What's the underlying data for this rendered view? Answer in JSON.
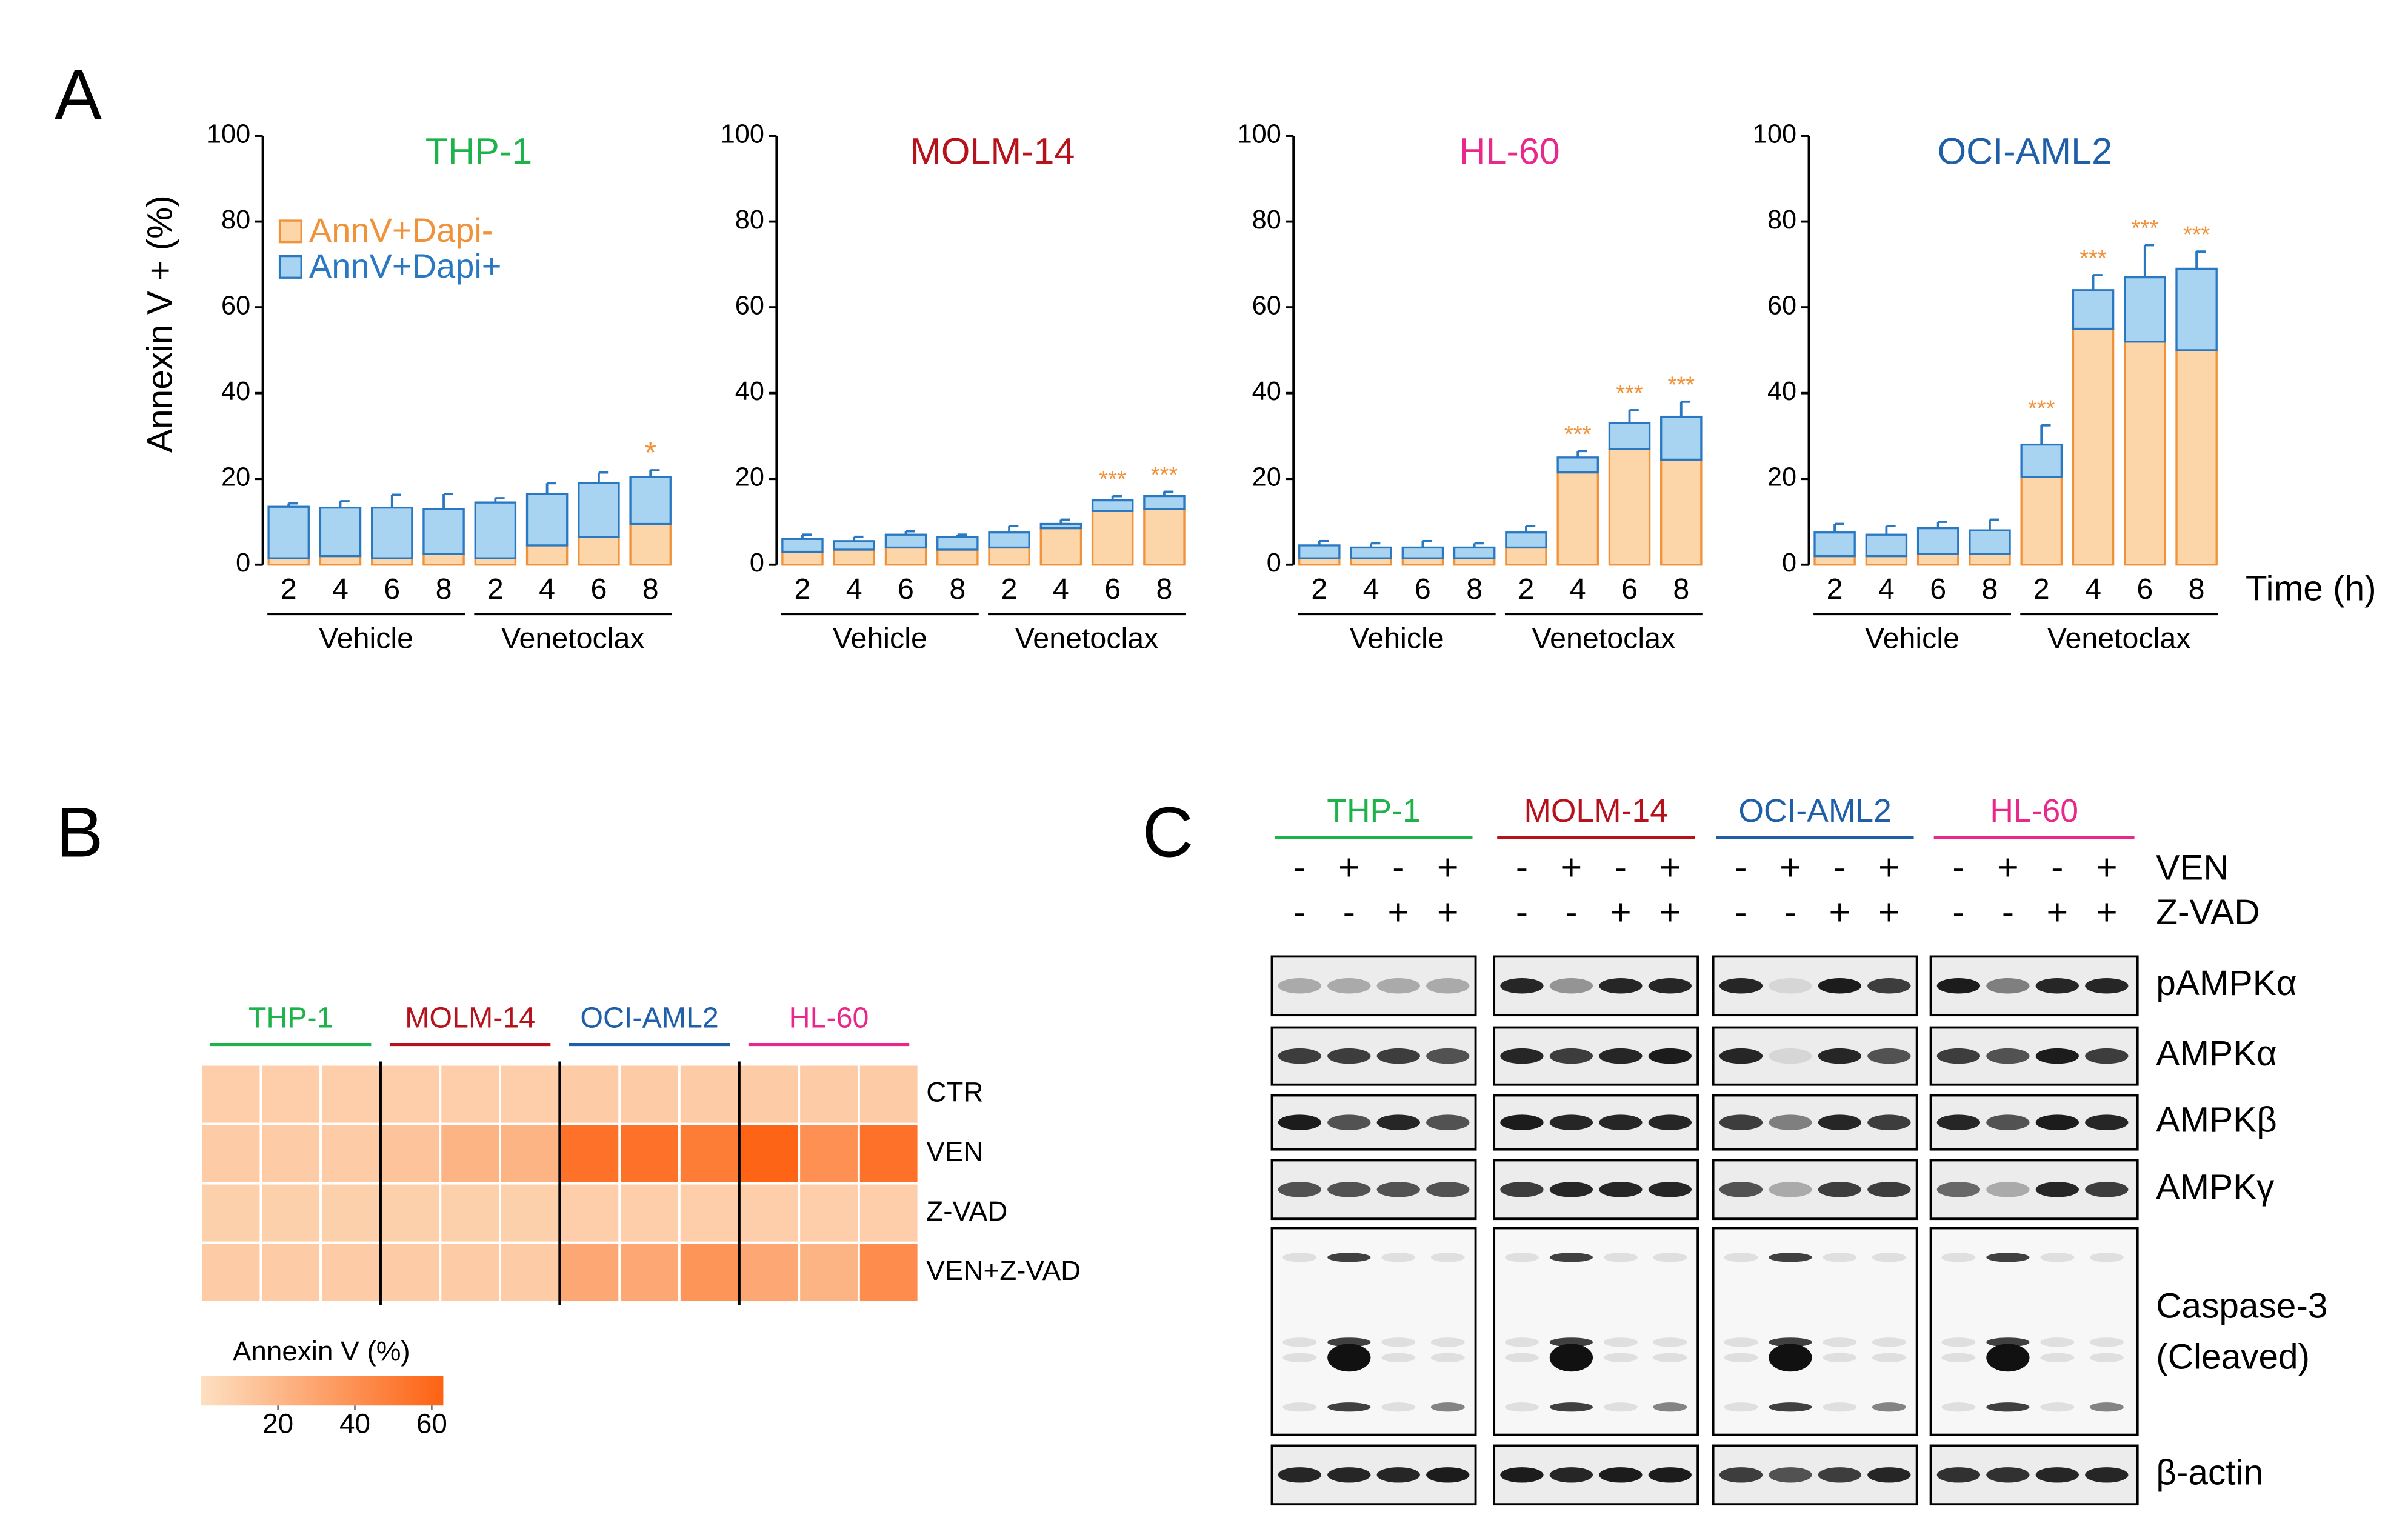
{
  "panels": {
    "A": "A",
    "B": "B",
    "C": "C"
  },
  "chart_data": [
    {
      "type": "bar",
      "stacked": true,
      "title": "THP-1",
      "title_color": "#1db34a",
      "ylabel": "Annexin V + (%)",
      "categories": [
        "2",
        "4",
        "6",
        "8",
        "2",
        "4",
        "6",
        "8"
      ],
      "groups": [
        "Vehicle",
        "Venetoclax"
      ],
      "ylim": [
        0,
        100
      ],
      "yticks": [
        0,
        20,
        40,
        60,
        80,
        100
      ],
      "series": [
        {
          "name": "AnnV+Dapi-",
          "color": "#fcd5a8",
          "edge": "#f0923a",
          "values": [
            1.5,
            2,
            1.5,
            2.5,
            1.5,
            4.5,
            6.5,
            9.5
          ],
          "errors": [
            0.5,
            0.5,
            0.5,
            1.5,
            0.5,
            1,
            2,
            3.5
          ]
        },
        {
          "name": "AnnV+Dapi+",
          "color": "#a8d4f2",
          "edge": "#2a78c2",
          "values": [
            12,
            11.3,
            11.8,
            10.5,
            13,
            12,
            12.5,
            11
          ],
          "errors": [
            0.8,
            1.5,
            3,
            3.5,
            1,
            2.5,
            2.5,
            1.5
          ]
        }
      ],
      "annotations": [
        {
          "index": 7,
          "text": "*"
        }
      ]
    },
    {
      "type": "bar",
      "stacked": true,
      "title": "MOLM-14",
      "title_color": "#b5121b",
      "categories": [
        "2",
        "4",
        "6",
        "8",
        "2",
        "4",
        "6",
        "8"
      ],
      "groups": [
        "Vehicle",
        "Venetoclax"
      ],
      "ylim": [
        0,
        100
      ],
      "yticks": [
        0,
        20,
        40,
        60,
        80,
        100
      ],
      "series": [
        {
          "color": "#fcd5a8",
          "edge": "#f0923a",
          "values": [
            3,
            3.5,
            4,
            3.5,
            4,
            8.5,
            12.5,
            13
          ],
          "errors": [
            0.5,
            1,
            1.5,
            1,
            1,
            1,
            1.5,
            2
          ]
        },
        {
          "color": "#a8d4f2",
          "edge": "#2a78c2",
          "values": [
            3,
            2,
            3,
            3,
            3.5,
            1,
            2.5,
            3
          ],
          "errors": [
            1,
            1,
            0.8,
            0.5,
            1.5,
            1,
            1,
            1
          ]
        }
      ],
      "annotations": [
        {
          "index": 6,
          "text": "***"
        },
        {
          "index": 7,
          "text": "***"
        }
      ]
    },
    {
      "type": "bar",
      "stacked": true,
      "title": "HL-60",
      "title_color": "#e8288a",
      "categories": [
        "2",
        "4",
        "6",
        "8",
        "2",
        "4",
        "6",
        "8"
      ],
      "groups": [
        "Vehicle",
        "Venetoclax"
      ],
      "ylim": [
        0,
        100
      ],
      "yticks": [
        0,
        20,
        40,
        60,
        80,
        100
      ],
      "series": [
        {
          "color": "#fcd5a8",
          "edge": "#f0923a",
          "values": [
            1.5,
            1.5,
            1.5,
            1.5,
            4,
            21.5,
            27,
            24.5
          ],
          "errors": [
            0.5,
            0.5,
            0.5,
            0.5,
            1,
            3,
            4,
            7
          ]
        },
        {
          "color": "#a8d4f2",
          "edge": "#2a78c2",
          "values": [
            3,
            2.5,
            2.5,
            2.5,
            3.5,
            3.5,
            6,
            10
          ],
          "errors": [
            1,
            1,
            1.5,
            1,
            1.5,
            1.5,
            3,
            3.5
          ]
        }
      ],
      "annotations": [
        {
          "index": 5,
          "text": "***"
        },
        {
          "index": 6,
          "text": "***"
        },
        {
          "index": 7,
          "text": "***"
        }
      ]
    },
    {
      "type": "bar",
      "stacked": true,
      "title": "OCI-AML2",
      "title_color": "#1f5fa8",
      "xlabel": "Time (h)",
      "categories": [
        "2",
        "4",
        "6",
        "8",
        "2",
        "4",
        "6",
        "8"
      ],
      "groups": [
        "Vehicle",
        "Venetoclax"
      ],
      "ylim": [
        0,
        100
      ],
      "yticks": [
        0,
        20,
        40,
        60,
        80,
        100
      ],
      "series": [
        {
          "color": "#fcd5a8",
          "edge": "#f0923a",
          "values": [
            2,
            2,
            2.5,
            2.5,
            20.5,
            55,
            52,
            50
          ],
          "errors": [
            0.5,
            1,
            0.5,
            0.5,
            5,
            6,
            4,
            5
          ]
        },
        {
          "color": "#a8d4f2",
          "edge": "#2a78c2",
          "values": [
            5.5,
            5,
            6,
            5.5,
            7.5,
            9,
            15,
            19
          ],
          "errors": [
            2,
            2,
            1.5,
            2.5,
            4.5,
            3.5,
            7.5,
            4
          ]
        }
      ],
      "annotations": [
        {
          "index": 4,
          "text": "***"
        },
        {
          "index": 5,
          "text": "***"
        },
        {
          "index": 6,
          "text": "***"
        },
        {
          "index": 7,
          "text": "***"
        }
      ]
    },
    {
      "type": "heatmap",
      "col_groups": [
        {
          "name": "THP-1",
          "color": "#1db34a"
        },
        {
          "name": "MOLM-14",
          "color": "#b5121b"
        },
        {
          "name": "OCI-AML2",
          "color": "#1f5fa8"
        },
        {
          "name": "HL-60",
          "color": "#e8288a"
        }
      ],
      "rows": [
        "CTR",
        "VEN",
        "Z-VAD",
        "VEN+Z-VAD"
      ],
      "values": [
        [
          9,
          9,
          9,
          9,
          9,
          9,
          10,
          10,
          10,
          10,
          10,
          10
        ],
        [
          10,
          10,
          10,
          14,
          22,
          22,
          55,
          55,
          50,
          62,
          40,
          55
        ],
        [
          8,
          8,
          8,
          8,
          8,
          8,
          9,
          9,
          9,
          9,
          9,
          9
        ],
        [
          10,
          10,
          10,
          10,
          10,
          10,
          28,
          28,
          38,
          28,
          22,
          42
        ]
      ],
      "clim": [
        0,
        63
      ],
      "colors": [
        "#fde0c2",
        "#fd6212"
      ],
      "colorbar_label": "Annexin V (%)",
      "colorbar_ticks": [
        20,
        40,
        60
      ]
    }
  ],
  "blot": {
    "groups": [
      {
        "name": "THP-1",
        "color": "#1db34a"
      },
      {
        "name": "MOLM-14",
        "color": "#b5121b"
      },
      {
        "name": "OCI-AML2",
        "color": "#1f5fa8"
      },
      {
        "name": "HL-60",
        "color": "#e8288a"
      }
    ],
    "conditions": [
      {
        "name": "VEN",
        "values": [
          "-",
          "+",
          "-",
          "+"
        ]
      },
      {
        "name": "Z-VAD",
        "values": [
          "-",
          "-",
          "+",
          "+"
        ]
      }
    ],
    "rows": [
      "pAMPKα",
      "AMPKα",
      "AMPKβ",
      "AMPKγ",
      [
        "Caspase-3",
        "(Cleaved)"
      ],
      "β-actin"
    ]
  }
}
